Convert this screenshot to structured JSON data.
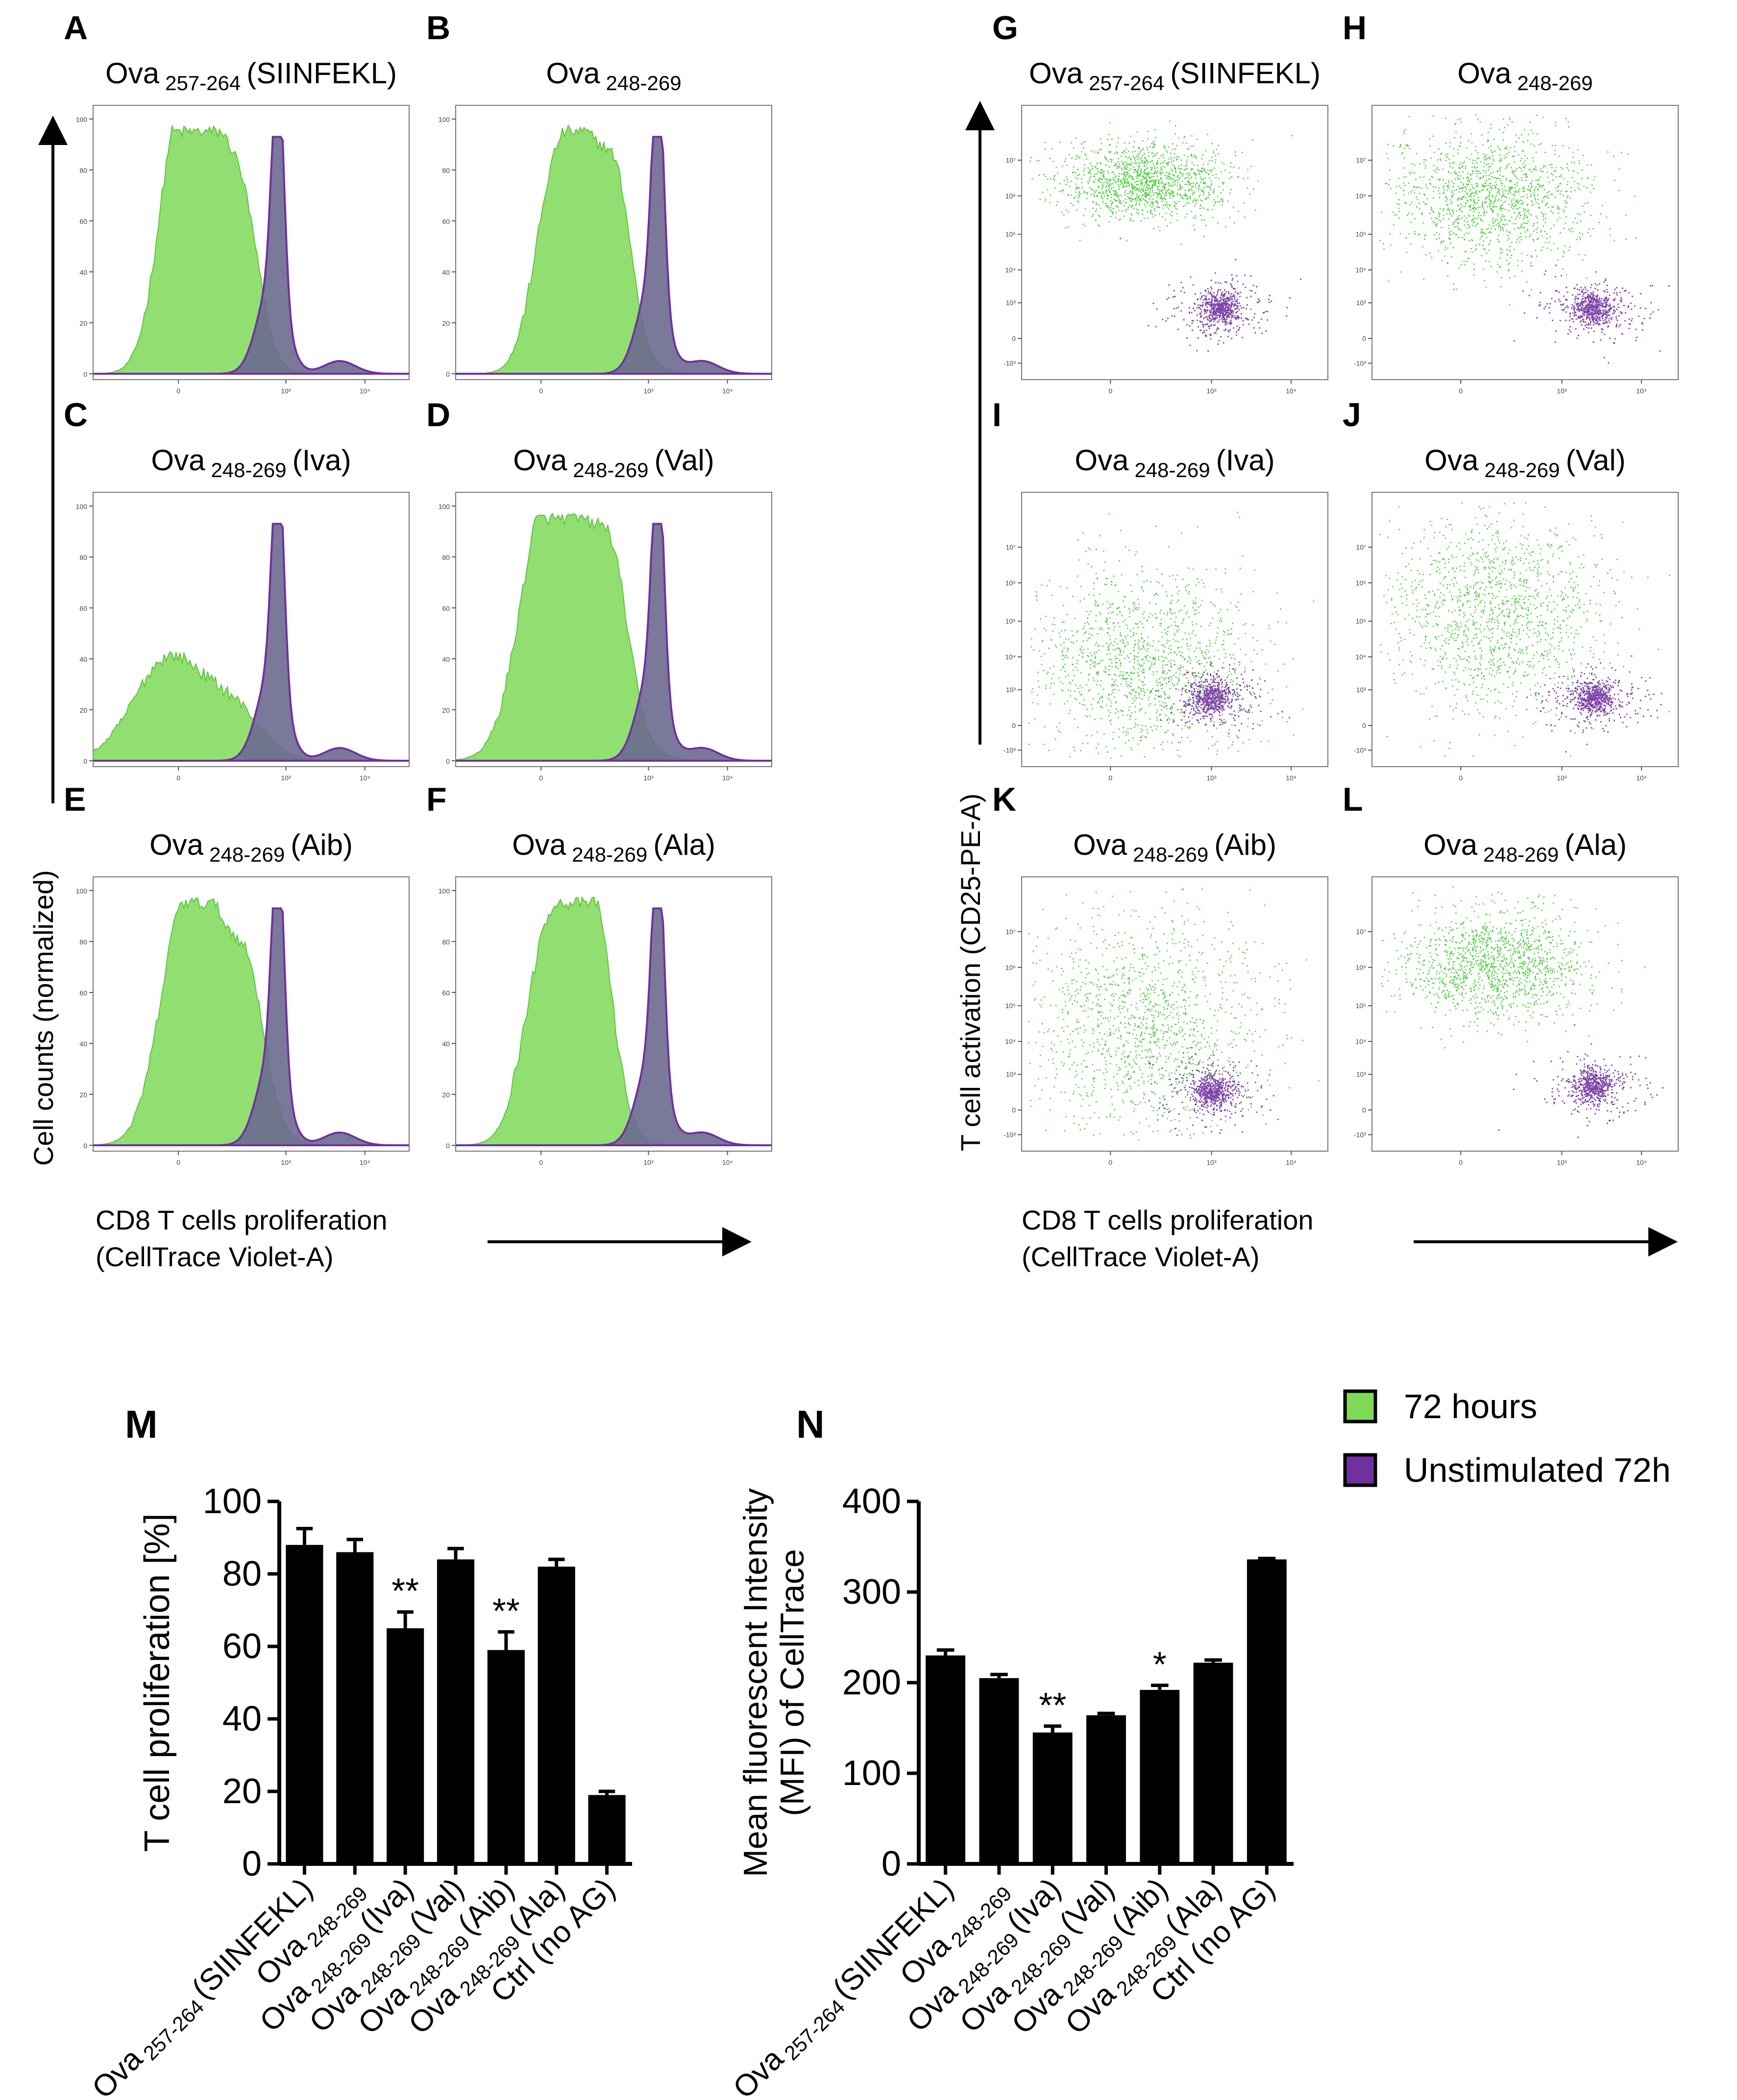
{
  "panels": [
    {
      "letter": "A",
      "main": "Ova",
      "sub": "257-264",
      "suffix": "(SIINFEKL)"
    },
    {
      "letter": "B",
      "main": "Ova",
      "sub": "248-269",
      "suffix": ""
    },
    {
      "letter": "C",
      "main": "Ova",
      "sub": "248-269",
      "suffix": "(Iva)"
    },
    {
      "letter": "D",
      "main": "Ova",
      "sub": "248-269",
      "suffix": "(Val)"
    },
    {
      "letter": "E",
      "main": "Ova",
      "sub": "248-269",
      "suffix": "(Aib)"
    },
    {
      "letter": "F",
      "main": "Ova",
      "sub": "248-269",
      "suffix": "(Ala)"
    },
    {
      "letter": "G",
      "main": "Ova",
      "sub": "257-264",
      "suffix": "(SIINFEKL)"
    },
    {
      "letter": "H",
      "main": "Ova",
      "sub": "248-269",
      "suffix": ""
    },
    {
      "letter": "I",
      "main": "Ova",
      "sub": "248-269",
      "suffix": "(Iva)"
    },
    {
      "letter": "J",
      "main": "Ova",
      "sub": "248-269",
      "suffix": "(Val)"
    },
    {
      "letter": "K",
      "main": "Ova",
      "sub": "248-269",
      "suffix": "(Aib)"
    },
    {
      "letter": "L",
      "main": "Ova",
      "sub": "248-269",
      "suffix": "(Ala)"
    }
  ],
  "axes": {
    "histogram_ylabel": "Cell counts (normalized)",
    "scatter_ylabel": "T cell activation (CD25-PE-A)",
    "xlabel_line1": "CD8 T cells proliferation",
    "xlabel_line2": "(CellTrace Violet-A)"
  },
  "histogram_ticks_y": [
    "0",
    "20",
    "40",
    "60",
    "80",
    "100"
  ],
  "histogram_ticks_x": [
    "0",
    "10³",
    "10⁴"
  ],
  "scatter_ticks_y": [
    "-10³",
    "0",
    "10³",
    "10⁴",
    "10⁵",
    "10⁶",
    "10⁷"
  ],
  "scatter_ticks_x": [
    "0",
    "10³",
    "10⁴"
  ],
  "legend": [
    {
      "label": "72 hours",
      "color": "#7ed957"
    },
    {
      "label": "Unstimulated 72h",
      "color": "#7030a0"
    }
  ],
  "colors": {
    "stimulated": "#7ed957",
    "unstimulated": "#7030a0",
    "overlap": "#6b6a8e"
  },
  "chart_data": [
    {
      "type": "bar",
      "panel": "M",
      "title": "",
      "xlabel": "",
      "ylabel": "T cell proliferation [%]",
      "ylim": [
        0,
        100
      ],
      "yticks": [
        "0",
        "20",
        "40",
        "60",
        "80",
        "100"
      ],
      "categories": [
        {
          "main": "Ova",
          "sub": "257-264",
          "suffix": "(SIINFEKL)"
        },
        {
          "main": "Ova",
          "sub": "248-269",
          "suffix": ""
        },
        {
          "main": "Ova",
          "sub": "248-269",
          "suffix": "(Iva)"
        },
        {
          "main": "Ova",
          "sub": "248-269",
          "suffix": "(Val)"
        },
        {
          "main": "Ova",
          "sub": "248-269",
          "suffix": "(Aib)"
        },
        {
          "main": "Ova",
          "sub": "248-269",
          "suffix": "(Ala)"
        },
        {
          "main": "Ctrl (no AG)",
          "sub": "",
          "suffix": ""
        }
      ],
      "values": [
        88,
        86,
        65,
        84,
        59,
        82,
        19
      ],
      "errors": [
        4.5,
        3.5,
        4.5,
        3,
        5,
        2,
        1
      ],
      "significance": [
        "",
        "",
        "**",
        "",
        "**",
        "",
        ""
      ]
    },
    {
      "type": "bar",
      "panel": "N",
      "title": "",
      "xlabel": "",
      "ylabel_line1": "Mean fluorescent Intensity",
      "ylabel_line2": "(MFI) of CellTrace",
      "ylim": [
        0,
        400
      ],
      "yticks": [
        "0",
        "100",
        "200",
        "300",
        "400"
      ],
      "categories": [
        {
          "main": "Ova",
          "sub": "257-264",
          "suffix": "(SIINFEKL)"
        },
        {
          "main": "Ova",
          "sub": "248-269",
          "suffix": ""
        },
        {
          "main": "Ova",
          "sub": "248-269",
          "suffix": "(Iva)"
        },
        {
          "main": "Ova",
          "sub": "248-269",
          "suffix": "(Val)"
        },
        {
          "main": "Ova",
          "sub": "248-269",
          "suffix": "(Aib)"
        },
        {
          "main": "Ova",
          "sub": "248-269",
          "suffix": "(Ala)"
        },
        {
          "main": "Ctrl (no AG)",
          "sub": "",
          "suffix": ""
        }
      ],
      "values": [
        230,
        205,
        145,
        164,
        192,
        222,
        336
      ],
      "errors": [
        6,
        4,
        7,
        2,
        5,
        3,
        1
      ],
      "significance": [
        "",
        "",
        "**",
        "",
        "*",
        "",
        ""
      ]
    }
  ]
}
